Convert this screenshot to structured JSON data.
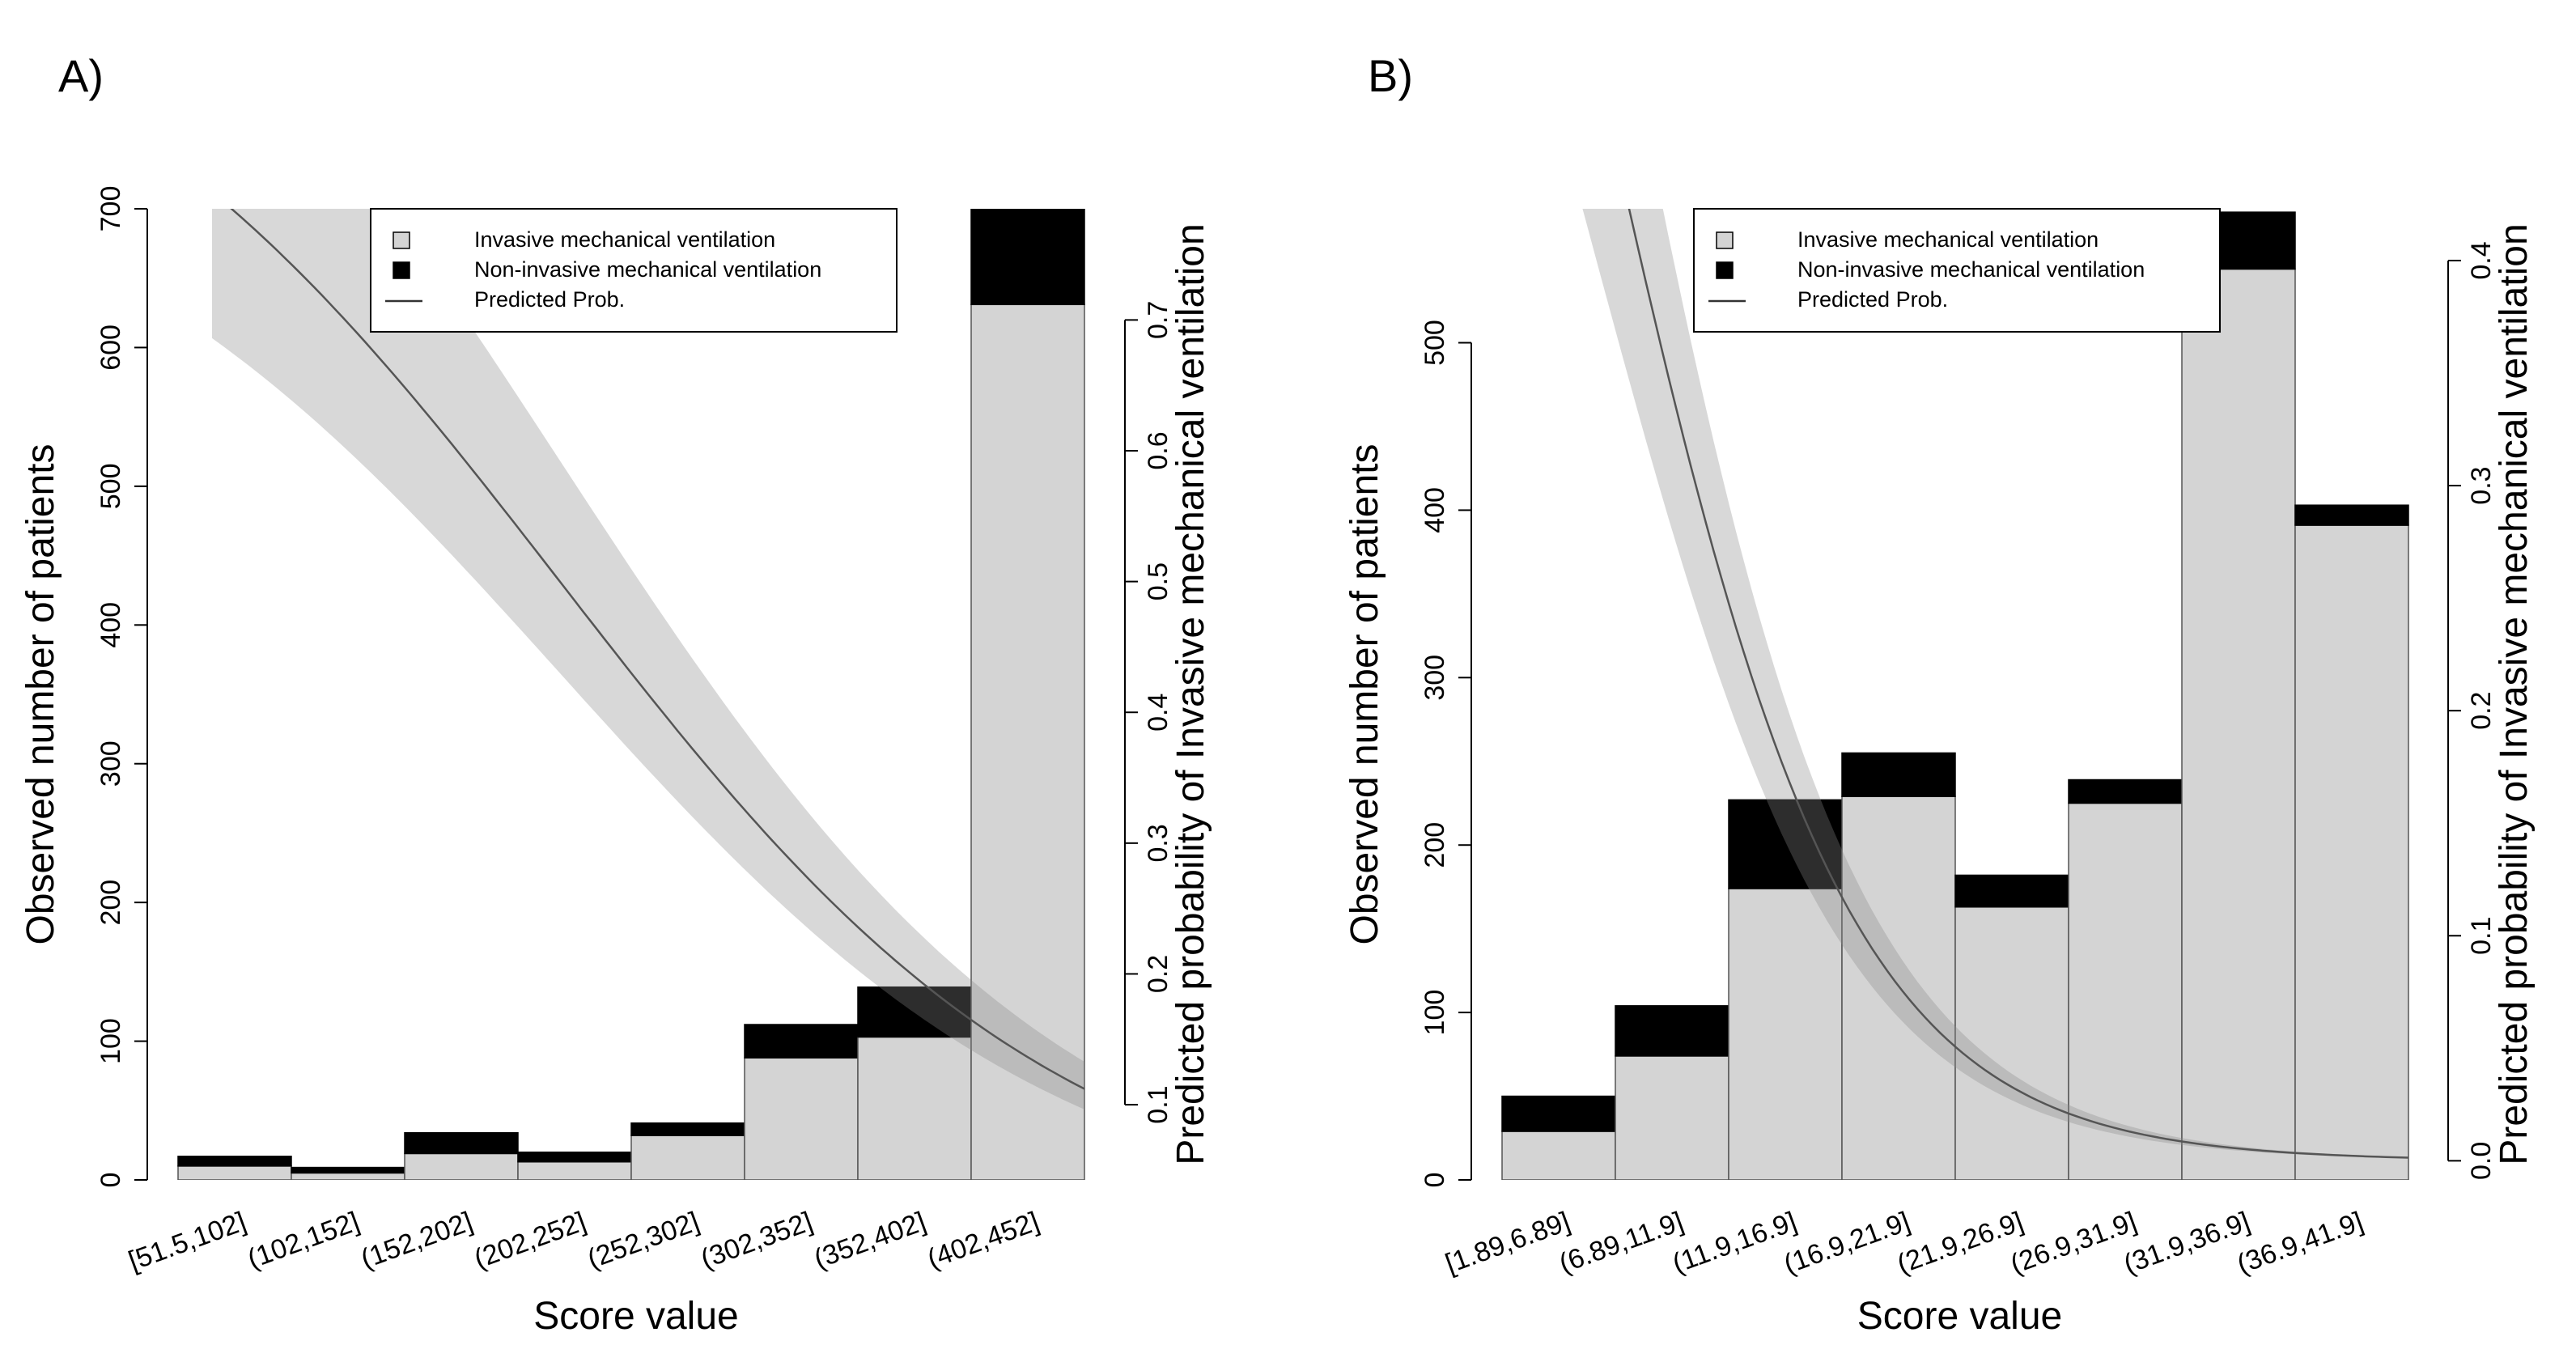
{
  "chart_data": [
    {
      "panel": "A)",
      "type": "bar",
      "stacked": true,
      "xlabel": "Score value",
      "ylabel": "Observed number of patients",
      "y2label": "Predicted probability of Invasive mechanical ventilation",
      "categories": [
        "[51.5,102]",
        "(102,152]",
        "(152,202]",
        "(202,252]",
        "(252,302]",
        "(302,352]",
        "(352,402]",
        "(402,452]"
      ],
      "series": [
        {
          "name": "Invasive mechanical ventilation",
          "color": "#d4d4d4",
          "values": [
            10,
            5,
            19,
            13,
            32,
            88,
            103,
            631
          ]
        },
        {
          "name": "Non-invasive mechanical ventilation",
          "color": "#000000",
          "values": [
            7,
            4,
            15,
            7,
            9,
            24,
            36,
            80
          ]
        }
      ],
      "ylim": [
        0,
        700
      ],
      "yticks": [
        0,
        100,
        200,
        300,
        400,
        500,
        600,
        700
      ],
      "y2lim": [
        0.0425,
        0.785
      ],
      "y2ticks": [
        0.1,
        0.2,
        0.3,
        0.4,
        0.5,
        0.6,
        0.7
      ],
      "curve": {
        "name": "Predicted Prob.",
        "x_range": [
          0.3,
          8.0
        ],
        "k": 0.447,
        "x_mid": 3.37,
        "ci_low_factor": 0.86,
        "ci_high_factor": 1.185
      },
      "legend": {
        "position": "top-right",
        "entries": [
          "Invasive mechanical ventilation",
          "Non-invasive mechanical ventilation",
          "Predicted Prob."
        ]
      },
      "grid": false
    },
    {
      "panel": "B)",
      "type": "bar",
      "stacked": true,
      "xlabel": "Score value",
      "ylabel": "Observed number of patients",
      "y2label": "Predicted probability of Invasive mechanical ventilation",
      "categories": [
        "[1.89,6.89]",
        "(6.89,11.9]",
        "(11.9,16.9]",
        "(16.9,21.9]",
        "(21.9,26.9]",
        "(26.9,31.9]",
        "(31.9,36.9]",
        "(36.9,41.9]"
      ],
      "series": [
        {
          "name": "Invasive mechanical ventilation",
          "color": "#d4d4d4",
          "values": [
            29,
            74,
            174,
            229,
            163,
            225,
            544,
            391
          ]
        },
        {
          "name": "Non-invasive mechanical ventilation",
          "color": "#000000",
          "values": [
            21,
            30,
            53,
            26,
            19,
            14,
            34,
            12
          ]
        }
      ],
      "ylim": [
        0,
        580
      ],
      "yticks": [
        0,
        100,
        200,
        300,
        400,
        500
      ],
      "y2lim": [
        -0.0085,
        0.423
      ],
      "y2ticks": [
        0.0,
        0.1,
        0.2,
        0.3,
        0.4
      ],
      "curve": {
        "name": "Predicted Prob.",
        "x_range": [
          0.0,
          8.0
        ],
        "k": 0.91,
        "x_mid": 0.78,
        "ci_low_factor": 0.82,
        "ci_high_factor": 1.18
      },
      "legend": {
        "position": "top-right",
        "entries": [
          "Invasive mechanical ventilation",
          "Non-invasive mechanical ventilation",
          "Predicted Prob."
        ]
      },
      "grid": false
    }
  ]
}
